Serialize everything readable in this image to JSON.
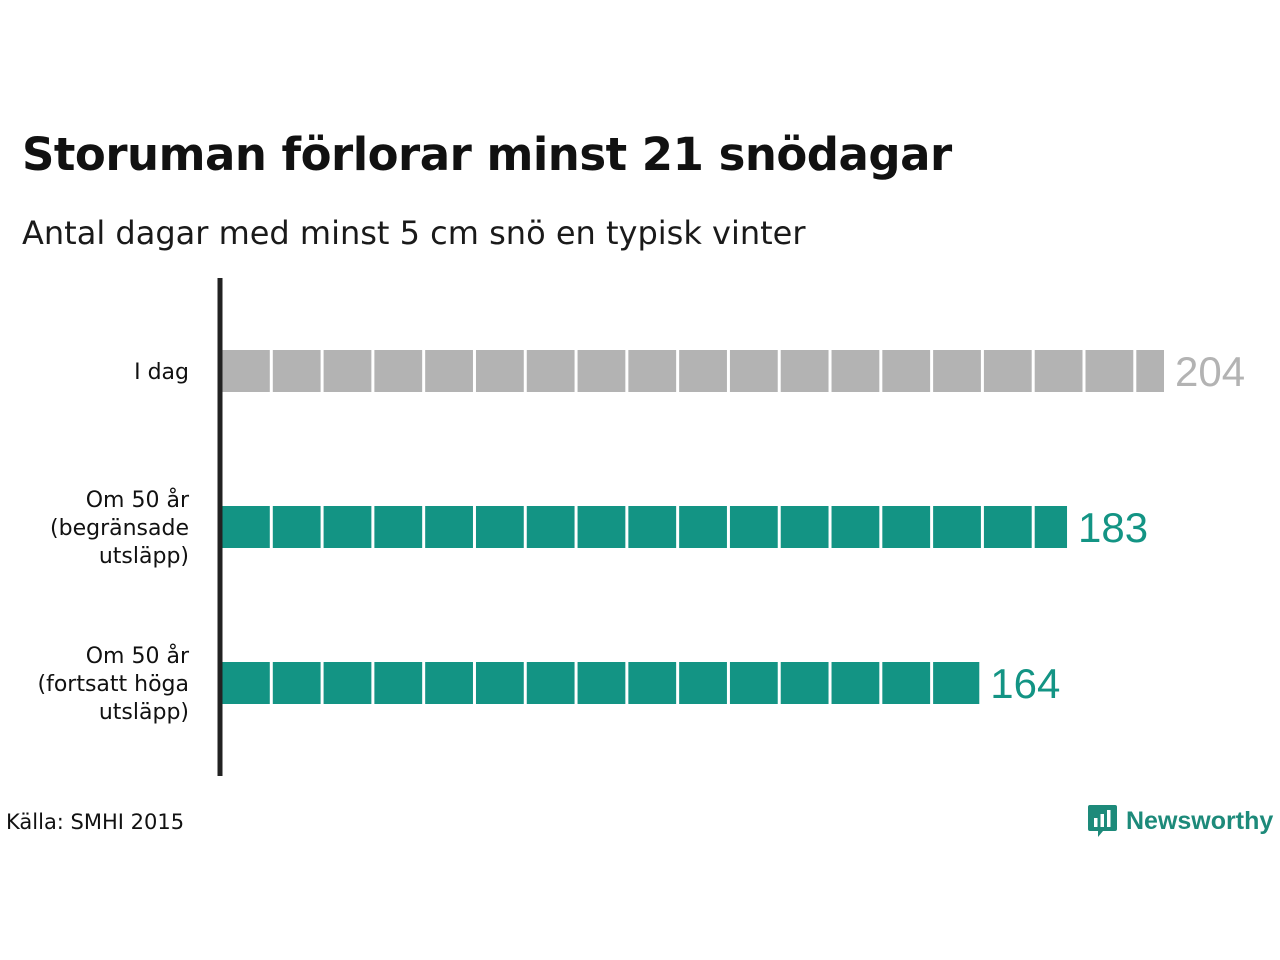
{
  "title": "Storuman förlorar minst 21 snödagar",
  "subtitle": "Antal dagar med minst 5 cm snö en typisk vinter",
  "source": "Källa: SMHI 2015",
  "brand": {
    "name": "Newsworthy",
    "icon": "newsworthy-logo-icon"
  },
  "colors": {
    "today": "#b3b3b3",
    "future": "#139484",
    "axis": "#222222"
  },
  "chart_data": {
    "type": "bar",
    "orientation": "horizontal",
    "unit_per_block": 11,
    "categories": [
      [
        "I dag"
      ],
      [
        "Om 50 år",
        "(begränsade",
        "utsläpp)"
      ],
      [
        "Om 50 år",
        "(fortsatt höga",
        "utsläpp)"
      ]
    ],
    "values": [
      204,
      183,
      164
    ],
    "value_labels": [
      "204",
      "183",
      "164"
    ],
    "xlim": [
      0,
      204
    ]
  }
}
